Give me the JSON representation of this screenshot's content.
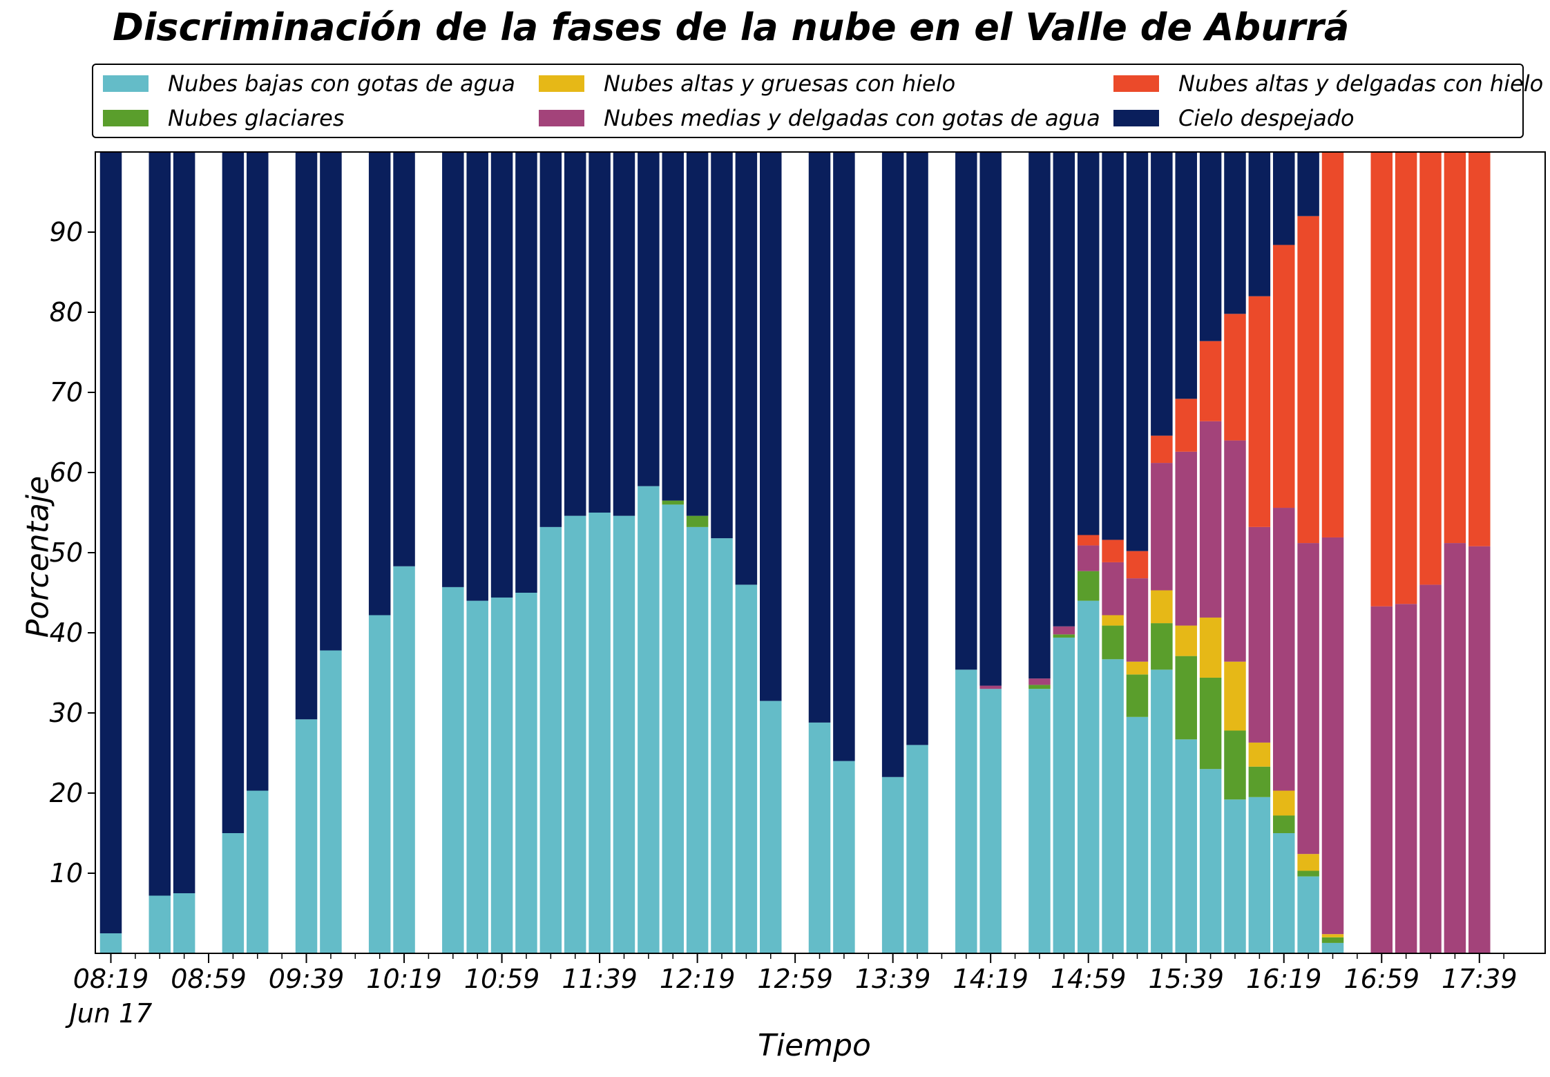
{
  "chart_data": {
    "type": "bar",
    "stacked": true,
    "title": "Discriminación de la fases de la nube en el Valle de Aburrá",
    "xlabel": "Tiempo",
    "ylabel": "Porcentaje",
    "ylim": [
      0,
      100
    ],
    "yticks": [
      10,
      20,
      30,
      40,
      50,
      60,
      70,
      80,
      90
    ],
    "xtick_labels": [
      "08:19",
      "08:59",
      "09:39",
      "10:19",
      "10:59",
      "11:39",
      "12:19",
      "12:59",
      "13:39",
      "14:19",
      "14:59",
      "15:39",
      "16:19",
      "16:59",
      "17:39"
    ],
    "xtick_sublabel": "Jun 17",
    "legend_position": "top",
    "x": [
      "08:19",
      "08:29",
      "08:39",
      "08:49",
      "08:59",
      "09:09",
      "09:19",
      "09:29",
      "09:39",
      "09:49",
      "09:59",
      "10:09",
      "10:19",
      "10:29",
      "10:39",
      "10:49",
      "10:59",
      "11:09",
      "11:19",
      "11:29",
      "11:39",
      "11:49",
      "11:59",
      "12:09",
      "12:19",
      "12:29",
      "12:39",
      "12:49",
      "12:59",
      "13:09",
      "13:19",
      "13:29",
      "13:39",
      "13:49",
      "13:59",
      "14:09",
      "14:19",
      "14:29",
      "14:39",
      "14:49",
      "14:59",
      "15:09",
      "15:19",
      "15:29",
      "15:39",
      "15:49",
      "15:59",
      "16:09",
      "16:19",
      "16:29",
      "16:39",
      "16:49",
      "16:59",
      "17:09",
      "17:19",
      "17:29",
      "17:39",
      "17:49"
    ],
    "series": [
      {
        "name": "Nubes bajas con gotas de agua",
        "color": "#64bcc8",
        "values": [
          2.5,
          null,
          7.2,
          7.5,
          null,
          15,
          20.3,
          null,
          29.2,
          37.8,
          null,
          42.2,
          48.3,
          null,
          45.7,
          44,
          44.4,
          45,
          53.2,
          54.6,
          55,
          54.6,
          58.3,
          56,
          53.2,
          51.8,
          46,
          31.5,
          null,
          28.8,
          24,
          null,
          22,
          26,
          null,
          35.4,
          33,
          null,
          33,
          39.4,
          44,
          36.7,
          29.5,
          35.4,
          26.7,
          23,
          19.2,
          19.5,
          15,
          9.6,
          1.3,
          null,
          null,
          null,
          null,
          null,
          null,
          null
        ]
      },
      {
        "name": "Nubes glaciares",
        "color": "#5a9e2c",
        "values": [
          0,
          null,
          0,
          0,
          null,
          0,
          0,
          null,
          0,
          0,
          null,
          0,
          0,
          null,
          0,
          0,
          0,
          0,
          0,
          0,
          0,
          0,
          0,
          0.5,
          1.4,
          0,
          0,
          0,
          null,
          0,
          0,
          null,
          0,
          0,
          null,
          0,
          0,
          null,
          0.5,
          0.4,
          3.7,
          4.2,
          5.3,
          5.8,
          10.4,
          11.4,
          8.6,
          3.8,
          2.2,
          0.7,
          0.7,
          null,
          0,
          0,
          0,
          0,
          0,
          null
        ]
      },
      {
        "name": "Nubes altas y gruesas con hielo",
        "color": "#e6b817",
        "values": [
          0,
          null,
          0,
          0,
          null,
          0,
          0,
          null,
          0,
          0,
          null,
          0,
          0,
          null,
          0,
          0,
          0,
          0,
          0,
          0,
          0,
          0,
          0,
          0,
          0,
          0,
          0,
          0,
          null,
          0,
          0,
          null,
          0,
          0,
          null,
          0,
          0,
          null,
          0,
          0,
          0,
          1.3,
          1.6,
          4.1,
          3.8,
          7.5,
          8.6,
          3,
          3.1,
          2.1,
          0.4,
          null,
          0,
          0,
          0,
          0,
          0,
          null
        ]
      },
      {
        "name": "Nubes medias y delgadas con gotas de agua",
        "color": "#a3437a",
        "values": [
          0,
          null,
          0,
          0,
          null,
          0,
          0,
          null,
          0,
          0,
          null,
          0,
          0,
          null,
          0,
          0,
          0,
          0,
          0,
          0,
          0,
          0,
          0,
          0,
          0,
          0,
          0,
          0,
          null,
          0,
          0,
          null,
          0,
          0,
          null,
          0,
          0.4,
          null,
          0.8,
          1,
          3.2,
          6.6,
          10.4,
          15.9,
          21.7,
          24.5,
          27.6,
          26.9,
          35.3,
          38.8,
          49.5,
          null,
          43.3,
          43.6,
          46,
          51.2,
          50.8,
          null
        ]
      },
      {
        "name": "Nubes altas y delgadas con hielo",
        "color": "#eb4a2a",
        "values": [
          0,
          null,
          0,
          0,
          null,
          0,
          0,
          null,
          0,
          0,
          null,
          0,
          0,
          null,
          0,
          0,
          0,
          0,
          0,
          0,
          0,
          0,
          0,
          0,
          0,
          0,
          0,
          0,
          null,
          0,
          0,
          null,
          0,
          0,
          null,
          0,
          0,
          null,
          0,
          0,
          1.3,
          2.8,
          3.4,
          3.4,
          6.6,
          10,
          15.8,
          28.8,
          32.8,
          40.8,
          48.1,
          null,
          56.7,
          56.4,
          54,
          48.8,
          49.2,
          null
        ]
      },
      {
        "name": "Cielo despejado",
        "color": "#0a1f5c",
        "values": [
          97.5,
          null,
          92.8,
          92.5,
          null,
          85,
          79.7,
          null,
          70.8,
          62.2,
          null,
          57.8,
          51.7,
          null,
          54.3,
          56,
          55.6,
          55,
          46.8,
          45.4,
          45,
          45.4,
          41.7,
          43.5,
          45.4,
          48.2,
          54,
          68.5,
          null,
          71.2,
          76,
          null,
          78,
          74,
          null,
          64.6,
          66.6,
          null,
          65.7,
          59.2,
          47.8,
          48.4,
          49.8,
          35.4,
          30.8,
          23.6,
          20.2,
          18,
          11.6,
          8,
          0,
          null,
          0,
          0,
          0,
          0,
          0,
          null
        ]
      }
    ]
  }
}
